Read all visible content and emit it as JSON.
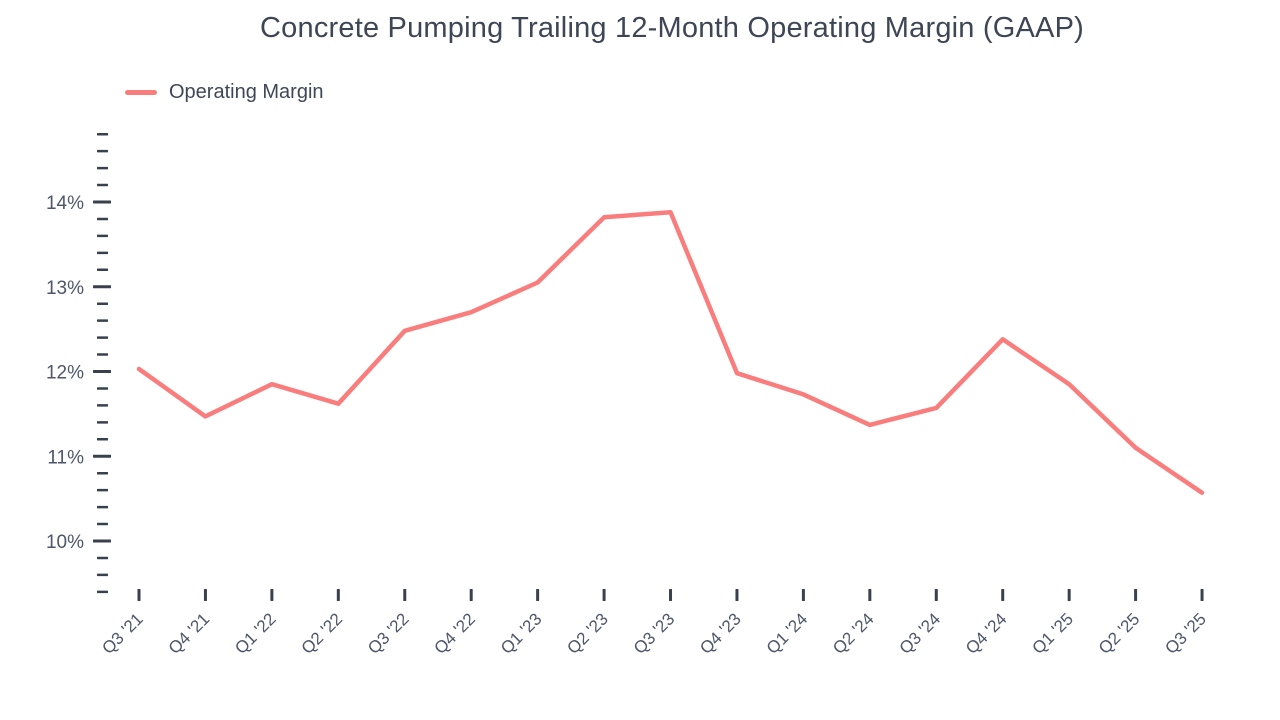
{
  "title": "Concrete Pumping Trailing 12-Month Operating Margin (GAAP)",
  "legend": {
    "label": "Operating Margin"
  },
  "colors": {
    "line": "#fa7d7d",
    "title_text": "#3e4656",
    "axis_label_text": "#4d566a",
    "tick_mark": "#39404e",
    "background": "#ffffff"
  },
  "chart_data": {
    "type": "line",
    "title": "Concrete Pumping Trailing 12-Month Operating Margin (GAAP)",
    "xlabel": "",
    "ylabel": "",
    "grid": false,
    "legend_position": "top-left",
    "categories": [
      "Q3 '21",
      "Q4 '21",
      "Q1 '22",
      "Q2 '22",
      "Q3 '22",
      "Q4 '22",
      "Q1 '23",
      "Q2 '23",
      "Q3 '23",
      "Q4 '23",
      "Q1 '24",
      "Q2 '24",
      "Q3 '24",
      "Q4 '24",
      "Q1 '25",
      "Q2 '25",
      "Q3 '25"
    ],
    "series": [
      {
        "name": "Operating Margin",
        "unit": "%",
        "values": [
          12.03,
          11.47,
          11.85,
          11.62,
          12.48,
          12.7,
          13.05,
          13.82,
          13.88,
          11.98,
          11.73,
          11.37,
          11.57,
          12.38,
          11.85,
          11.1,
          10.57
        ]
      }
    ],
    "y_axis": {
      "min": 9.4,
      "max": 14.8,
      "major_step": 1,
      "minor_step": 0.2,
      "major_tick_values": [
        10,
        11,
        12,
        13,
        14
      ],
      "major_tick_labels": [
        "10%",
        "11%",
        "12%",
        "13%",
        "14%"
      ],
      "label_format": "percent"
    }
  }
}
